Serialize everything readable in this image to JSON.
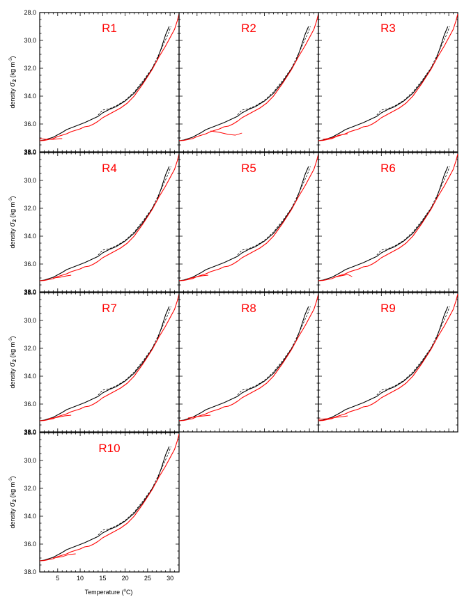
{
  "chart_data": {
    "type": "line",
    "layout": "small-multiples 3 columns x 4 rows",
    "ylabel_parts": {
      "prefix": "density ",
      "symbol": "σ",
      "subscript": "2",
      "units_prefix": " (kg m",
      "units_exp": "-3",
      "units_suffix": ")"
    },
    "xlabel_parts": {
      "prefix": "Temperature (",
      "degree": "o",
      "suffix": "C)"
    },
    "ylim": [
      28.0,
      38.0
    ],
    "y_inverted": true,
    "y_ticks": [
      "28.0",
      "30.0",
      "32.0",
      "34.0",
      "36.0",
      "38.0"
    ],
    "x_range": [
      1,
      32
    ],
    "x_ticks": [
      "5",
      "10",
      "15",
      "20",
      "25",
      "30"
    ],
    "colors": {
      "black": "#000000",
      "red": "#ff0000"
    },
    "panels": [
      {
        "label": "R1",
        "red_variant": 0
      },
      {
        "label": "R2",
        "red_variant": 1
      },
      {
        "label": "R3",
        "red_variant": 2
      },
      {
        "label": "R4",
        "red_variant": 3
      },
      {
        "label": "R5",
        "red_variant": 4
      },
      {
        "label": "R6",
        "red_variant": 5
      },
      {
        "label": "R7",
        "red_variant": 6
      },
      {
        "label": "R8",
        "red_variant": 7
      },
      {
        "label": "R9",
        "red_variant": 8
      },
      {
        "label": "R10",
        "red_variant": 9
      }
    ],
    "series": [
      {
        "color": "black",
        "style": "solid",
        "x": [
          1.0,
          2.0,
          4.0,
          6.0,
          7.0,
          9.0,
          11.0,
          13.0,
          14.0,
          15.0,
          16.5,
          18.0,
          20.0,
          22.0,
          24.0,
          25.5,
          27.0,
          28.0,
          29.0,
          29.8
        ],
        "y": [
          37.2,
          37.15,
          36.95,
          36.6,
          36.4,
          36.15,
          35.9,
          35.6,
          35.45,
          35.2,
          34.95,
          34.75,
          34.35,
          33.8,
          33.0,
          32.3,
          31.5,
          30.6,
          29.6,
          29.0
        ]
      },
      {
        "color": "black",
        "style": "dashed",
        "x": [
          14.0,
          15.0,
          16.5,
          18.0,
          20.0,
          22.0,
          24.0,
          26.0,
          27.5,
          28.5,
          29.5,
          30.2
        ],
        "y": [
          35.35,
          35.0,
          34.9,
          34.7,
          34.3,
          33.7,
          32.9,
          32.0,
          31.0,
          30.3,
          29.6,
          29.0
        ]
      },
      {
        "color": "red",
        "style": "solid",
        "x": [
          1.0,
          2.0,
          4.0,
          5.0,
          7.0,
          8.0,
          10.0,
          11.0,
          12.0,
          13.0,
          14.0,
          15.0,
          17.0,
          19.0,
          20.5,
          22.0,
          24.0,
          26.0,
          27.5,
          29.0,
          30.0,
          31.0,
          31.6,
          32.0
        ],
        "y": [
          37.2,
          37.18,
          37.05,
          36.9,
          36.7,
          36.55,
          36.35,
          36.2,
          36.15,
          36.0,
          35.8,
          35.55,
          35.2,
          34.85,
          34.5,
          34.0,
          33.1,
          32.1,
          31.2,
          30.4,
          29.8,
          29.2,
          28.6,
          28.1
        ]
      }
    ],
    "red_excursions": [
      {
        "x": [
          1.0,
          2.5,
          4.0,
          5.5,
          6.0
        ],
        "y": [
          37.05,
          37.1,
          37.1,
          37.05,
          37.05
        ]
      },
      {
        "x": [
          8.0,
          10.0,
          12.0,
          13.5,
          15.0
        ],
        "y": [
          36.5,
          36.6,
          36.75,
          36.8,
          36.65
        ]
      },
      {
        "x": [
          2.0,
          4.0,
          5.5,
          7.5
        ],
        "y": [
          37.1,
          37.0,
          36.8,
          36.7
        ]
      },
      {
        "x": [
          4.0,
          5.5,
          7.0,
          8.0
        ],
        "y": [
          37.0,
          36.95,
          36.85,
          36.8
        ]
      },
      {
        "x": [
          3.0,
          4.5,
          6.0,
          7.5
        ],
        "y": [
          37.05,
          36.95,
          36.85,
          36.8
        ]
      },
      {
        "x": [
          4.5,
          6.0,
          7.5,
          8.5
        ],
        "y": [
          36.95,
          36.85,
          36.75,
          36.9
        ]
      },
      {
        "x": [
          3.0,
          5.0,
          6.5,
          8.0
        ],
        "y": [
          37.05,
          36.95,
          36.85,
          36.8
        ]
      },
      {
        "x": [
          3.0,
          5.0,
          6.5,
          8.0
        ],
        "y": [
          37.0,
          36.9,
          36.85,
          36.8
        ]
      },
      {
        "x": [
          1.0,
          3.0,
          5.0,
          6.5,
          7.5
        ],
        "y": [
          37.1,
          37.05,
          36.95,
          36.9,
          36.85
        ]
      },
      {
        "x": [
          4.0,
          6.0,
          7.5,
          9.0
        ],
        "y": [
          37.0,
          36.9,
          36.75,
          36.7
        ]
      }
    ]
  }
}
